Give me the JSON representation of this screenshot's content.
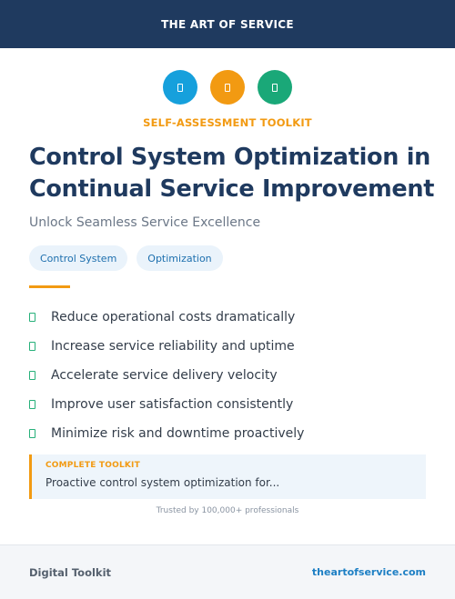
{
  "header": {
    "brand": "THE ART OF SERVICE"
  },
  "colors": {
    "header_bg": "#1f3a5f",
    "accent_orange": "#f29a12",
    "blue": "#16a0dc",
    "green": "#1aa878",
    "tag_bg": "#eaf3fb"
  },
  "icons": [
    {
      "name": "blue-icon",
      "color": "#16a0dc"
    },
    {
      "name": "orange-icon",
      "color": "#f29a12"
    },
    {
      "name": "green-icon",
      "color": "#1aa878"
    }
  ],
  "kicker": "SELF-ASSESSMENT TOOLKIT",
  "title": "Control System Optimization in Continual Service Improvement",
  "subtitle": "Unlock Seamless Service Excellence",
  "tags": [
    "Control System",
    "Optimization"
  ],
  "benefits": [
    "Reduce operational costs dramatically",
    "Increase service reliability and uptime",
    "Accelerate service delivery velocity",
    "Improve user satisfaction consistently",
    "Minimize risk and downtime proactively"
  ],
  "callout": {
    "label": "COMPLETE TOOLKIT",
    "text": "Proactive control system optimization for..."
  },
  "trusted": "Trusted by 100,000+ professionals",
  "footer": {
    "left": "Digital Toolkit",
    "right": "theartofservice.com"
  }
}
